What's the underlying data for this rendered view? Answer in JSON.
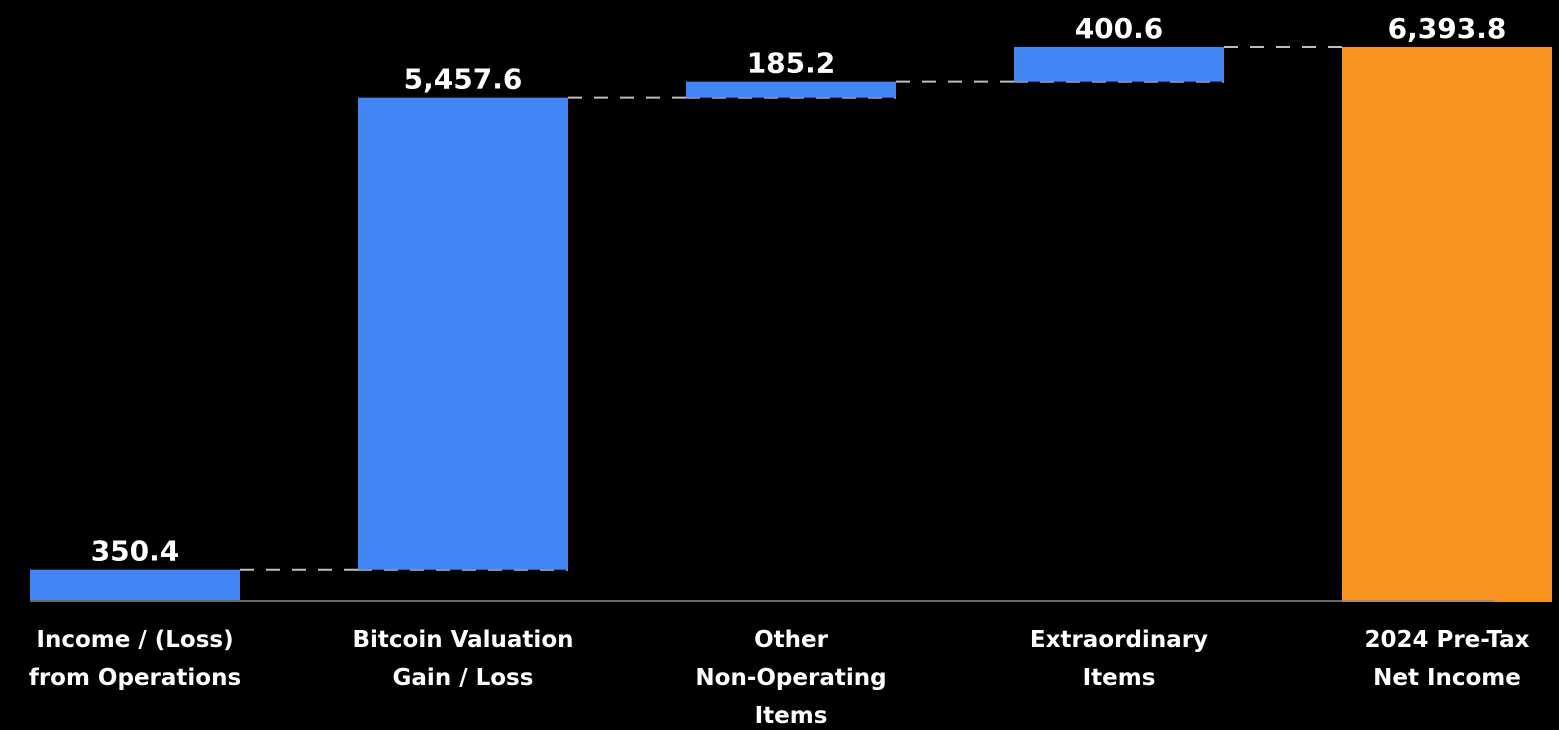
{
  "colors": {
    "background": "#000000",
    "increase": "#4285f4",
    "total": "#f7931e",
    "connector": "#bfbfbf",
    "baseline": "#8a8a8a",
    "text": "#ffffff"
  },
  "chart_data": {
    "type": "bar",
    "subtype": "waterfall",
    "title": "",
    "xlabel": "",
    "ylabel": "",
    "ylim": [
      0,
      6393.8
    ],
    "grid": false,
    "legend": "none",
    "categories": [
      [
        "Income / (Loss)",
        "from Operations"
      ],
      [
        "Bitcoin Valuation",
        "Gain / Loss"
      ],
      [
        "Other",
        "Non-Operating",
        "Items"
      ],
      [
        "Extraordinary",
        "Items"
      ],
      [
        "2024 Pre-Tax",
        "Net Income"
      ]
    ],
    "values": [
      350.4,
      5457.6,
      185.2,
      400.6,
      6393.8
    ],
    "value_labels": [
      "350.4",
      "5,457.6",
      "185.2",
      "400.6",
      "6,393.8"
    ],
    "kinds": [
      "increase",
      "increase",
      "increase",
      "increase",
      "total"
    ],
    "connectors": "dashed"
  }
}
